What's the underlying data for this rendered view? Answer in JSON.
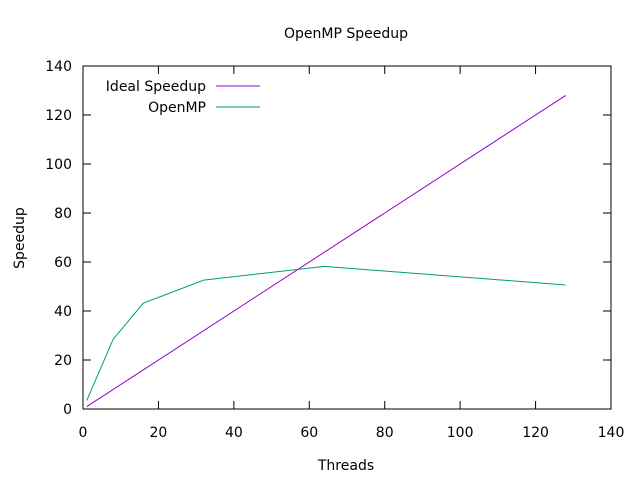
{
  "chart_data": {
    "type": "line",
    "title": "OpenMP Speedup",
    "xlabel": "Threads",
    "ylabel": "Speedup",
    "xlim": [
      0,
      140
    ],
    "ylim": [
      0,
      140
    ],
    "xticks": [
      0,
      20,
      40,
      60,
      80,
      100,
      120,
      140
    ],
    "yticks": [
      0,
      20,
      40,
      60,
      80,
      100,
      120,
      140
    ],
    "grid": false,
    "legend_position": "top-left",
    "series": [
      {
        "name": "Ideal Speedup",
        "color": "#9400d3",
        "x": [
          1,
          128
        ],
        "y": [
          1,
          128
        ]
      },
      {
        "name": "OpenMP",
        "color": "#009e73",
        "x": [
          1,
          8,
          16,
          32,
          64,
          128
        ],
        "y": [
          3.5,
          28.5,
          43.2,
          52.6,
          58.2,
          50.6
        ]
      }
    ]
  }
}
